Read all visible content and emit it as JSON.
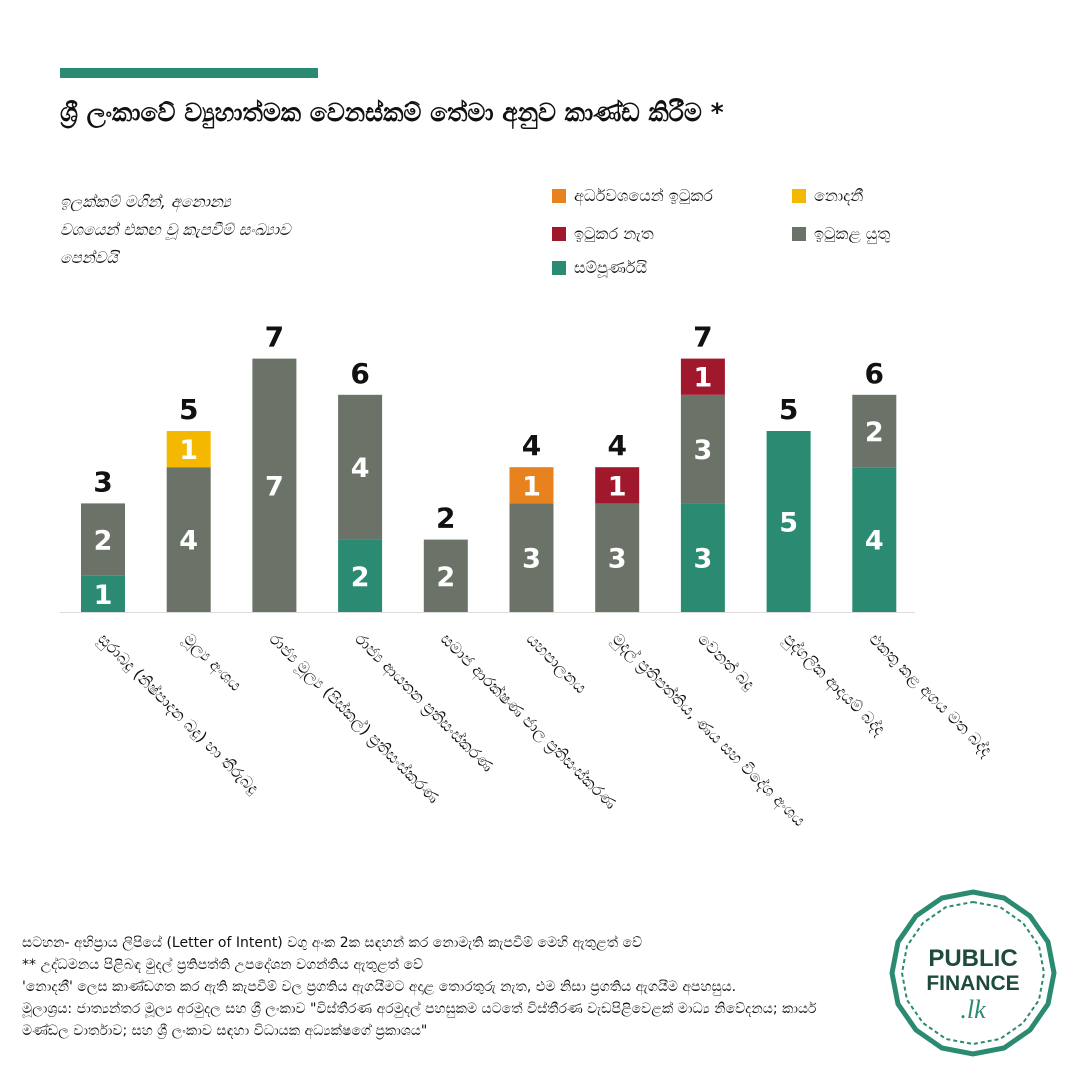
{
  "title": "ශ්‍රී ලංකාවේ ව්‍යුහාත්මක වෙනස්කම් තේමා අනුව කාණ්ඩ කිරීම *",
  "subtitle": "ඉලක්කම් මගින්, අනොන්‍ය\nවශයෙන් එකඟ වූ කැපවීම් සංඛ්‍යාව\nපෙන්වයි",
  "colors": {
    "accent": "#2b8a72",
    "partial": "#e8821e",
    "unknown": "#f5b800",
    "notmet": "#a0182c",
    "tobemet": "#6b7267",
    "complete": "#2b8a72"
  },
  "legend": [
    {
      "key": "partial",
      "label": "අර්ධවශයෙන් ඉටුකර",
      "color": "#e8821e"
    },
    {
      "key": "unknown",
      "label": "නොදනී",
      "color": "#f5b800"
    },
    {
      "key": "notmet",
      "label": "ඉටුකර නැත",
      "color": "#a0182c"
    },
    {
      "key": "tobemet",
      "label": "ඉටුකළ යුතු",
      "color": "#6b7267"
    },
    {
      "key": "complete",
      "label": "සම්පූර්ණයි",
      "color": "#2b8a72"
    }
  ],
  "chart_data": {
    "type": "bar",
    "stacked": true,
    "categories": [
      "සුරාබදු (නිෂ්පාදන බදු) හා තීරුබදු",
      "මූල්‍ය අංශය",
      "රාජ්‍ය මූල්‍ය (පිස්කල්) ප්‍රතිසංස්කරණ",
      "රාජ්‍ය ආයතන ප්‍රතිසංස්කරණ",
      "සමාජ ආරක්ෂණ ජාල ප්‍රතිසංස්කරණ",
      "යහපාලනය",
      "මුදල් ප්‍රතිපත්තිය, ණය සහ විදේශ අංශය",
      "වෙනත් බදු",
      "පුද්ගලික ආදායම් බද්ද",
      "එකතු කළ අගය මත බද්ද"
    ],
    "series": [
      {
        "name": "සම්පූර්ණයි",
        "key": "complete",
        "values": [
          1,
          0,
          0,
          2,
          0,
          0,
          0,
          3,
          5,
          4
        ]
      },
      {
        "name": "ඉටුකළ යුතු",
        "key": "tobemet",
        "values": [
          2,
          4,
          7,
          4,
          2,
          3,
          3,
          3,
          0,
          2
        ]
      },
      {
        "name": "නොදනී",
        "key": "unknown",
        "values": [
          0,
          1,
          0,
          0,
          0,
          0,
          0,
          0,
          0,
          0
        ]
      },
      {
        "name": "අර්ධවශයෙන් ඉටුකර",
        "key": "partial",
        "values": [
          0,
          0,
          0,
          0,
          0,
          1,
          0,
          0,
          0,
          0
        ]
      },
      {
        "name": "ඉටුකර නැත",
        "key": "notmet",
        "values": [
          0,
          0,
          0,
          0,
          0,
          0,
          1,
          1,
          0,
          0
        ]
      }
    ],
    "totals": [
      3,
      5,
      7,
      6,
      2,
      4,
      4,
      7,
      5,
      6
    ],
    "ylim": [
      0,
      7
    ],
    "grid": false,
    "legend_position": "top-right"
  },
  "notes": [
    "සටහන- අභිප්‍රාය ලිපියේ (Letter of Intent) වගු අංක 2ක සඳහන් කර නොමැති කැපවීම් මෙහි ඇතුළත් වේ",
    "** උද්ධමනය පිළිබඳ මුදල් ප්‍රතිපත්ති උපදේශන වගන්තිය ඇතුළත් වේ",
    "'නොදනී' ලෙස කාණ්ඩගත කර ඇති කැපවීම් වල ප්‍රගතිය ඇගයීමට අදාළ තොරතුරු නැත, එම නිසා ප්‍රගතිය ඇගයීම අපහසුය.",
    "මූලාශ්‍රය: ජාත්‍යන්තර මූල්‍ය අරමුදල සහ ශ්‍රී ලංකාව \"විස්තීරණ අරමුදල් පහසුකම යටතේ විස්තීරණ වැඩපිළිවෙළක් මාධ්‍ය නිවේදනය; කාර්ය මණ්ඩල වාර්තාව; සහ ශ්‍රී ලංකාව සඳහා විධායක අධ්‍යක්ෂගේ ප්‍රකාශය\""
  ],
  "logo": {
    "line1": "PUBLIC",
    "line2": "FINANCE",
    "line3": ".lk"
  }
}
